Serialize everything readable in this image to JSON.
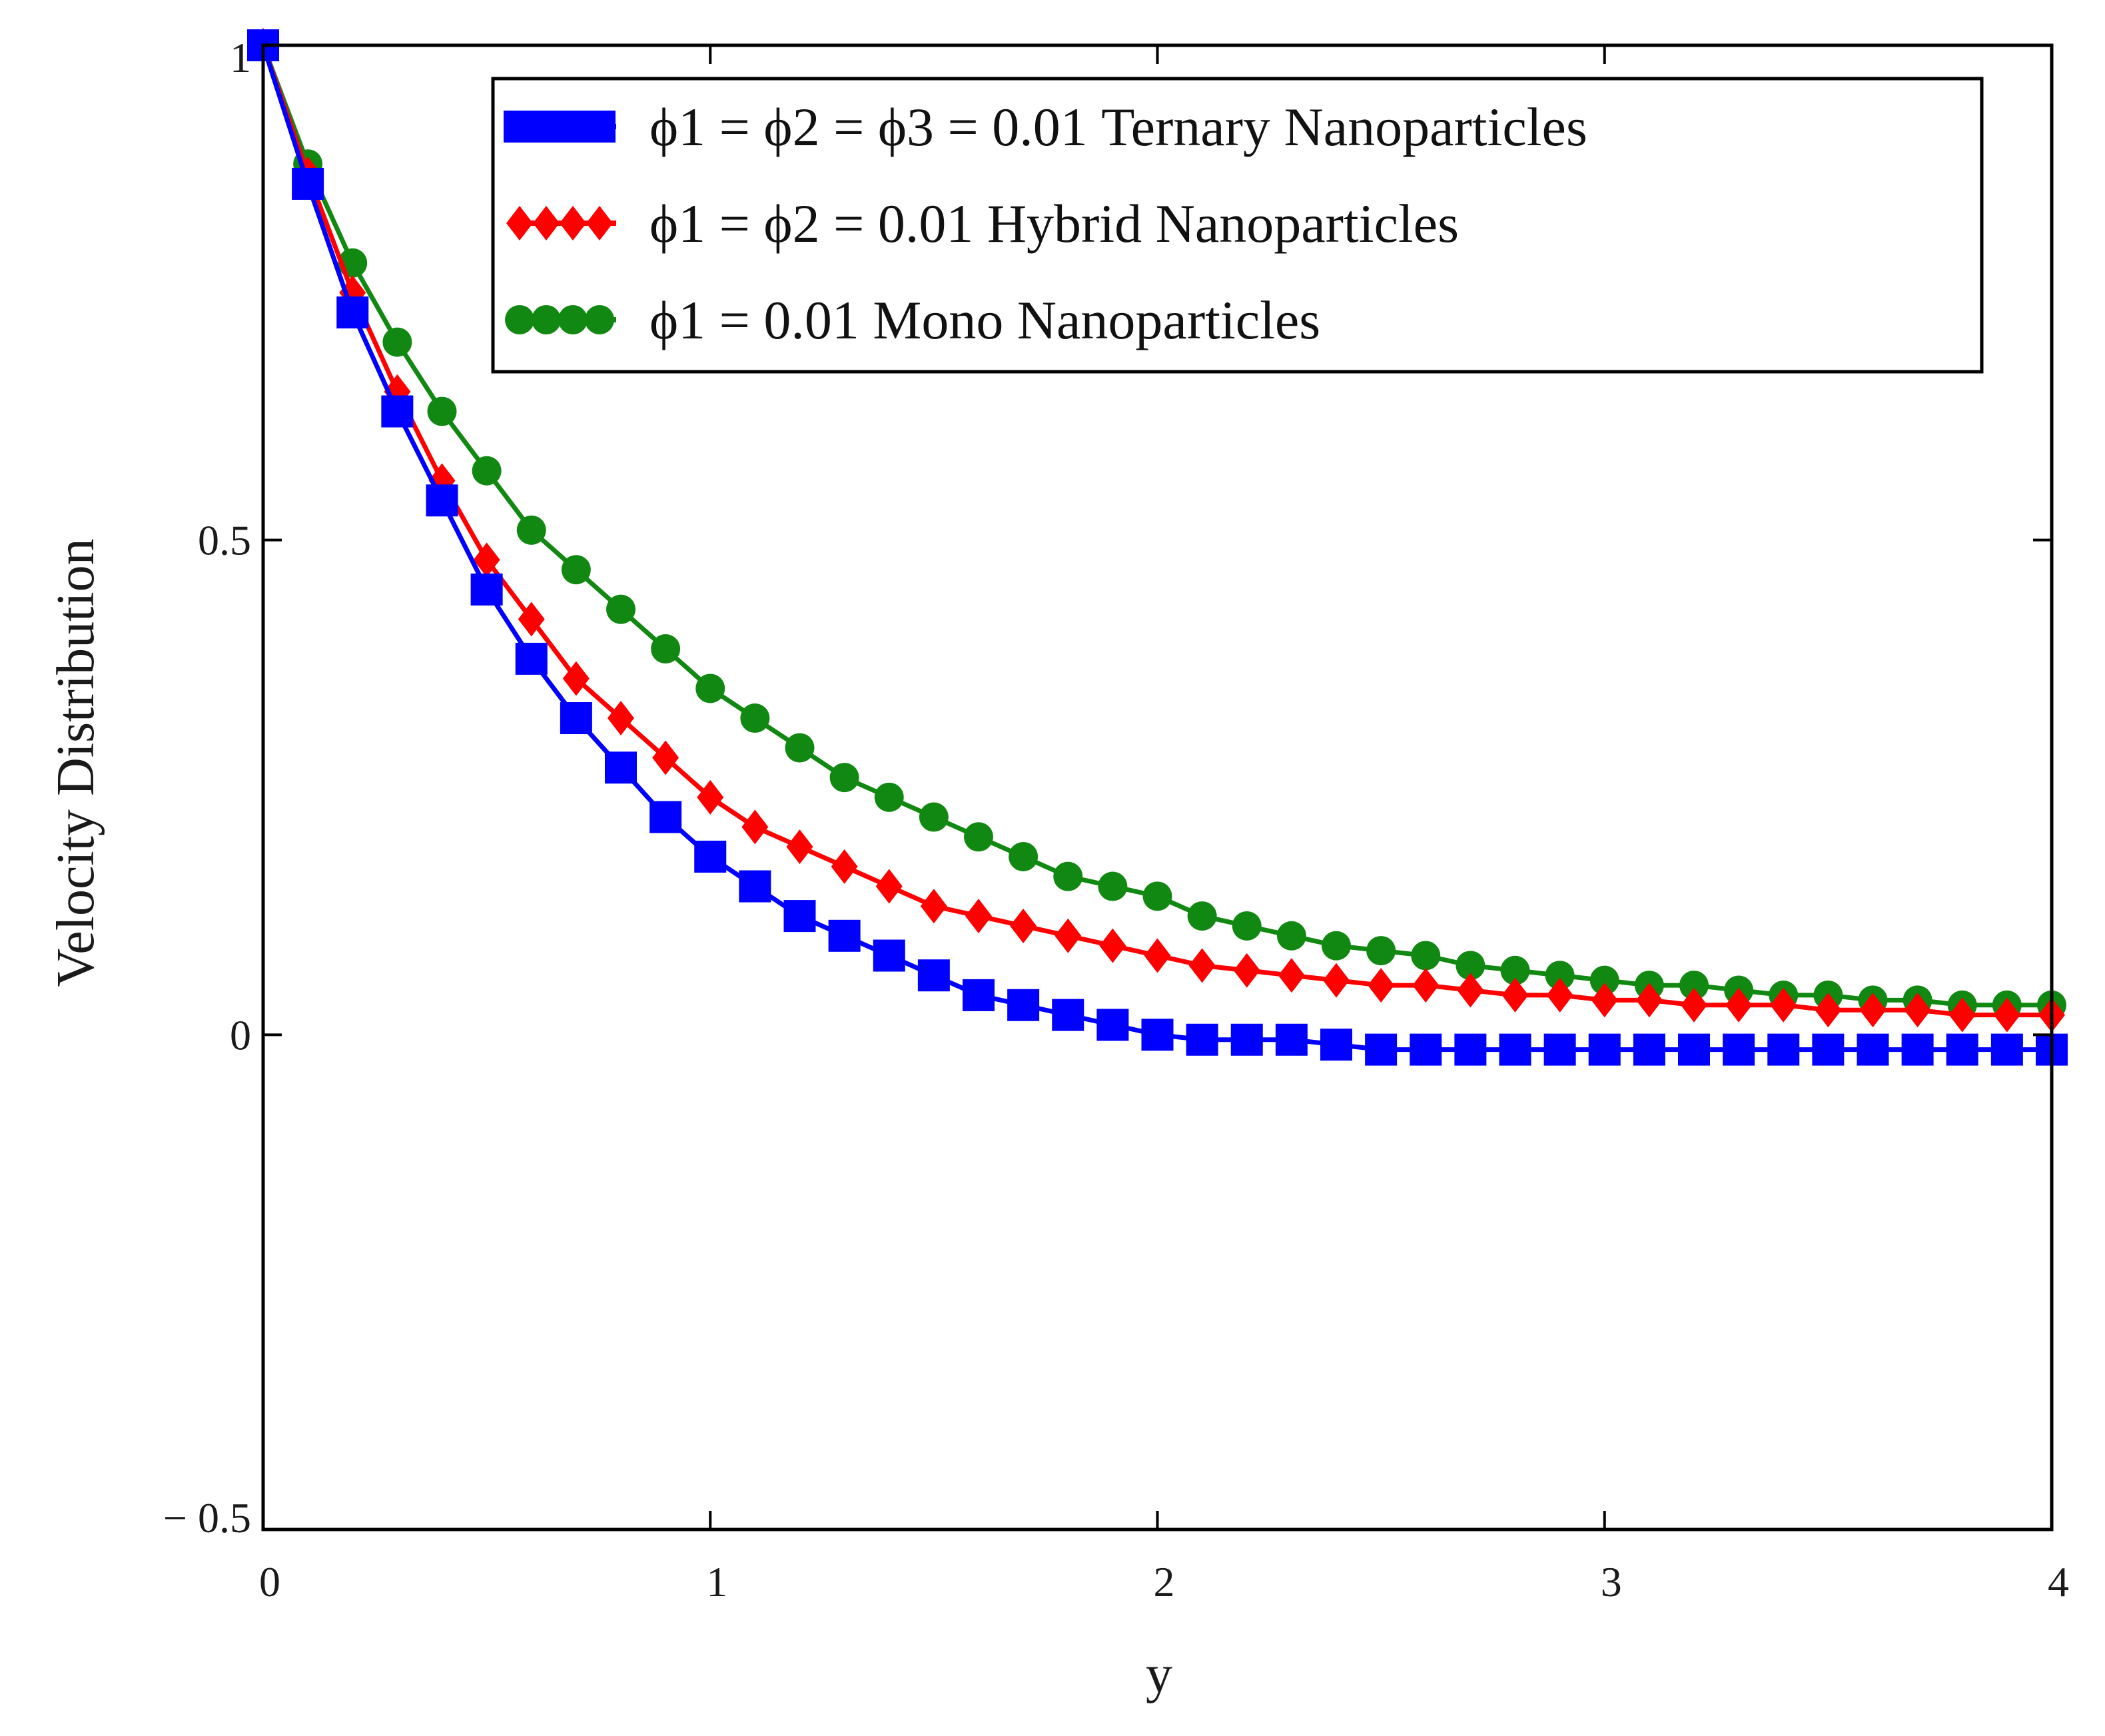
{
  "chart_data": {
    "type": "line",
    "title": "",
    "xlabel": "y",
    "ylabel": "Velocity   Distribution",
    "xlim": [
      0,
      4
    ],
    "ylim": [
      -0.5,
      1
    ],
    "x_ticks": [
      0,
      1,
      2,
      3,
      4
    ],
    "y_ticks": [
      -0.5,
      0,
      0.5,
      1
    ],
    "x_tick_labels": [
      "0",
      "1",
      "2",
      "3",
      "4"
    ],
    "y_tick_labels": [
      "− 0.5",
      "0",
      "0.5",
      "1"
    ],
    "legend_position": "top-right",
    "x": [
      0,
      0.1,
      0.2,
      0.3,
      0.4,
      0.5,
      0.6,
      0.7,
      0.8,
      0.9,
      1.0,
      1.1,
      1.2,
      1.3,
      1.4,
      1.5,
      1.6,
      1.7,
      1.8,
      1.9,
      2.0,
      2.1,
      2.2,
      2.3,
      2.4,
      2.5,
      2.6,
      2.7,
      2.8,
      2.9,
      3.0,
      3.1,
      3.2,
      3.3,
      3.4,
      3.5,
      3.6,
      3.7,
      3.8,
      3.9,
      4.0
    ],
    "series": [
      {
        "name": "ϕ1 = ϕ2 = ϕ3 = 0.01 Ternary Nanoparticles",
        "color": "#0000ff",
        "marker": "square",
        "values": [
          1.0,
          0.86,
          0.73,
          0.63,
          0.54,
          0.45,
          0.38,
          0.32,
          0.27,
          0.22,
          0.18,
          0.15,
          0.12,
          0.1,
          0.08,
          0.06,
          0.04,
          0.03,
          0.02,
          0.01,
          0.0,
          -0.005,
          -0.005,
          -0.005,
          -0.01,
          -0.015,
          -0.015,
          -0.015,
          -0.015,
          -0.015,
          -0.015,
          -0.015,
          -0.015,
          -0.015,
          -0.015,
          -0.015,
          -0.015,
          -0.015,
          -0.015,
          -0.015,
          -0.015
        ]
      },
      {
        "name": "ϕ1 = ϕ2 =  0.01 Hybrid Nanoparticles",
        "color": "#ff0000",
        "marker": "diamond",
        "values": [
          1.0,
          0.87,
          0.75,
          0.65,
          0.56,
          0.48,
          0.42,
          0.36,
          0.32,
          0.28,
          0.24,
          0.21,
          0.19,
          0.17,
          0.15,
          0.13,
          0.12,
          0.11,
          0.1,
          0.09,
          0.08,
          0.07,
          0.065,
          0.06,
          0.055,
          0.05,
          0.05,
          0.045,
          0.04,
          0.04,
          0.035,
          0.035,
          0.03,
          0.03,
          0.03,
          0.025,
          0.025,
          0.025,
          0.02,
          0.02,
          0.02
        ]
      },
      {
        "name": "ϕ1 = 0.01  Mono Nanoparticles",
        "color": "#118811",
        "marker": "circle",
        "values": [
          1.0,
          0.88,
          0.78,
          0.7,
          0.63,
          0.57,
          0.51,
          0.47,
          0.43,
          0.39,
          0.35,
          0.32,
          0.29,
          0.26,
          0.24,
          0.22,
          0.2,
          0.18,
          0.16,
          0.15,
          0.14,
          0.12,
          0.11,
          0.1,
          0.09,
          0.085,
          0.08,
          0.07,
          0.065,
          0.06,
          0.055,
          0.05,
          0.05,
          0.045,
          0.04,
          0.04,
          0.035,
          0.035,
          0.03,
          0.03,
          0.03
        ]
      }
    ]
  }
}
